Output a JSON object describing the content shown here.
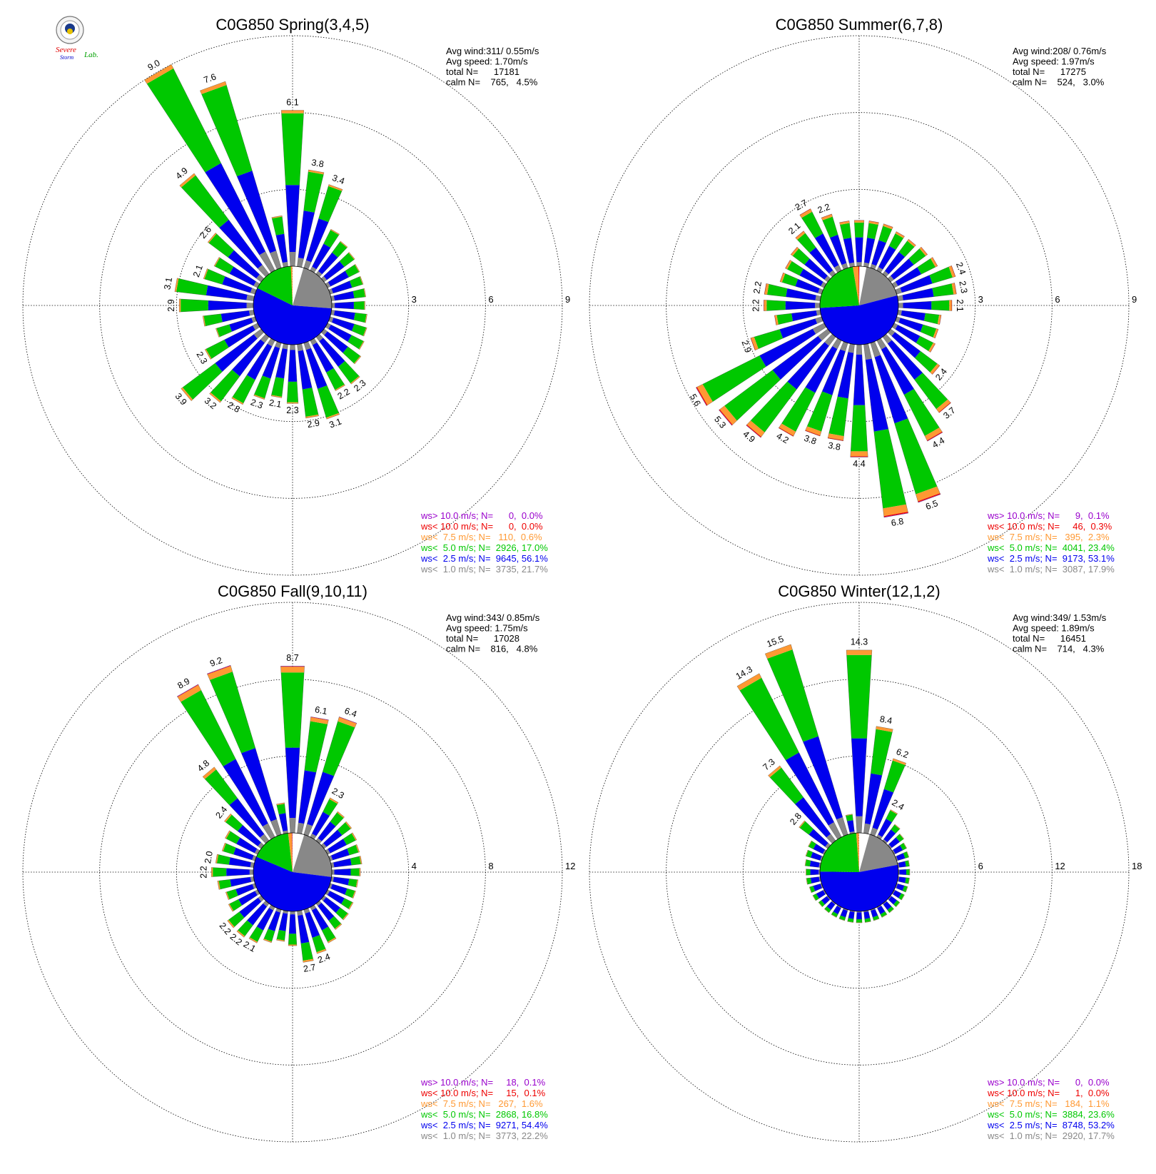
{
  "logo": {
    "top_text": "",
    "line1": "Severe",
    "line2": "Storm",
    "line3": "Lab."
  },
  "colors": {
    "calm": "#ffffff",
    "lt1": "#888888",
    "lt2_5": "#0000ee",
    "lt5": "#00c800",
    "lt7_5": "#ff9933",
    "lt10": "#ee0000",
    "gt10": "#9900cc"
  },
  "chart_data": [
    {
      "type": "windrose",
      "title": "C0G850 Spring(3,4,5)",
      "ring_labels": [
        "3",
        "6",
        "9"
      ],
      "ring_values": [
        3,
        6,
        9
      ],
      "stats": [
        "Avg wind:311/ 0.55m/s",
        "Avg speed: 1.70m/s",
        "total N=      17181",
        "calm N=    765,   4.5%"
      ],
      "speed_share": [
        0.045,
        0.217,
        0.561,
        0.17,
        0.006,
        0.0,
        0.0
      ],
      "directions": [
        {
          "dir": 0,
          "v": 6.1,
          "label": "6.1"
        },
        {
          "dir": 10,
          "v": 3.8,
          "label": "3.8"
        },
        {
          "dir": 20,
          "v": 3.4,
          "label": "3.4"
        },
        {
          "dir": 30,
          "v": 1.8
        },
        {
          "dir": 40,
          "v": 1.6
        },
        {
          "dir": 50,
          "v": 1.5
        },
        {
          "dir": 60,
          "v": 1.4
        },
        {
          "dir": 70,
          "v": 1.35
        },
        {
          "dir": 80,
          "v": 1.35
        },
        {
          "dir": 90,
          "v": 1.3
        },
        {
          "dir": 100,
          "v": 1.4
        },
        {
          "dir": 110,
          "v": 1.5
        },
        {
          "dir": 120,
          "v": 1.6
        },
        {
          "dir": 130,
          "v": 1.8
        },
        {
          "dir": 140,
          "v": 2.3,
          "label": "2.3"
        },
        {
          "dir": 150,
          "v": 2.2,
          "label": "2.2"
        },
        {
          "dir": 160,
          "v": 3.1,
          "label": "3.1"
        },
        {
          "dir": 170,
          "v": 2.9,
          "label": "2.9"
        },
        {
          "dir": 180,
          "v": 2.3,
          "label": "2.3"
        },
        {
          "dir": 190,
          "v": 2.1,
          "label": "2.1"
        },
        {
          "dir": 200,
          "v": 2.3,
          "label": "2.3"
        },
        {
          "dir": 210,
          "v": 2.8,
          "label": "2.8"
        },
        {
          "dir": 220,
          "v": 3.2,
          "label": "3.2"
        },
        {
          "dir": 230,
          "v": 3.9,
          "label": "3.9"
        },
        {
          "dir": 240,
          "v": 2.3,
          "label": "2.3"
        },
        {
          "dir": 250,
          "v": 1.6
        },
        {
          "dir": 260,
          "v": 2.0
        },
        {
          "dir": 270,
          "v": 2.9,
          "label": "2.9"
        },
        {
          "dir": 280,
          "v": 3.1,
          "label": "3.1"
        },
        {
          "dir": 290,
          "v": 2.1,
          "label": "2.1"
        },
        {
          "dir": 300,
          "v": 1.9
        },
        {
          "dir": 310,
          "v": 2.6,
          "label": "2.6"
        },
        {
          "dir": 320,
          "v": 4.9,
          "label": "4.9"
        },
        {
          "dir": 330,
          "v": 9.0,
          "label": "9.0"
        },
        {
          "dir": 340,
          "v": 7.6,
          "label": "7.6"
        },
        {
          "dir": 350,
          "v": 2.0
        }
      ],
      "legend": [
        {
          "text": "ws> 10.0 m/s; N=      0,  0.0%",
          "key": "gt10"
        },
        {
          "text": "ws< 10.0 m/s; N=      0,  0.0%",
          "key": "lt10"
        },
        {
          "text": "ws<  7.5 m/s; N=   110,  0.6%",
          "key": "lt7_5"
        },
        {
          "text": "ws<  5.0 m/s; N=  2926, 17.0%",
          "key": "lt5"
        },
        {
          "text": "ws<  2.5 m/s; N=  9645, 56.1%",
          "key": "lt2_5"
        },
        {
          "text": "ws<  1.0 m/s; N=  3735, 21.7%",
          "key": "lt1"
        }
      ]
    },
    {
      "type": "windrose",
      "title": "C0G850 Summer(6,7,8)",
      "ring_labels": [
        "3",
        "6",
        "9"
      ],
      "ring_values": [
        3,
        6,
        9
      ],
      "stats": [
        "Avg wind:208/ 0.76m/s",
        "Avg speed: 1.97m/s",
        "total N=      17275",
        "calm N=    524,   3.0%"
      ],
      "speed_share": [
        0.03,
        0.179,
        0.531,
        0.234,
        0.023,
        0.003,
        0.001
      ],
      "directions": [
        {
          "dir": 0,
          "v": 1.8
        },
        {
          "dir": 10,
          "v": 1.8
        },
        {
          "dir": 20,
          "v": 1.8
        },
        {
          "dir": 30,
          "v": 1.7
        },
        {
          "dir": 40,
          "v": 1.7
        },
        {
          "dir": 50,
          "v": 1.8
        },
        {
          "dir": 60,
          "v": 1.9
        },
        {
          "dir": 70,
          "v": 2.4,
          "label": "2.4"
        },
        {
          "dir": 80,
          "v": 2.3,
          "label": "2.3"
        },
        {
          "dir": 90,
          "v": 2.1,
          "label": "2.1"
        },
        {
          "dir": 100,
          "v": 1.7
        },
        {
          "dir": 110,
          "v": 1.7
        },
        {
          "dir": 120,
          "v": 1.8
        },
        {
          "dir": 130,
          "v": 2.4,
          "label": "2.4"
        },
        {
          "dir": 140,
          "v": 3.7,
          "label": "3.7"
        },
        {
          "dir": 150,
          "v": 4.4,
          "label": "4.4"
        },
        {
          "dir": 160,
          "v": 6.5,
          "label": "6.5"
        },
        {
          "dir": 170,
          "v": 6.8,
          "label": "6.8"
        },
        {
          "dir": 180,
          "v": 4.4,
          "label": "4.4"
        },
        {
          "dir": 190,
          "v": 3.8,
          "label": "3.8"
        },
        {
          "dir": 200,
          "v": 3.8,
          "label": "3.8"
        },
        {
          "dir": 210,
          "v": 4.2,
          "label": "4.2"
        },
        {
          "dir": 220,
          "v": 4.9,
          "label": "4.9"
        },
        {
          "dir": 230,
          "v": 5.3,
          "label": "5.3"
        },
        {
          "dir": 240,
          "v": 5.6,
          "label": "5.6"
        },
        {
          "dir": 250,
          "v": 2.9,
          "label": "2.9"
        },
        {
          "dir": 260,
          "v": 1.8
        },
        {
          "dir": 270,
          "v": 2.2,
          "label": "2.2"
        },
        {
          "dir": 280,
          "v": 2.2,
          "label": "2.2"
        },
        {
          "dir": 290,
          "v": 1.7
        },
        {
          "dir": 300,
          "v": 1.7
        },
        {
          "dir": 310,
          "v": 1.8
        },
        {
          "dir": 320,
          "v": 2.1,
          "label": "2.1"
        },
        {
          "dir": 330,
          "v": 2.7,
          "label": "2.7"
        },
        {
          "dir": 340,
          "v": 2.2,
          "label": "2.2"
        },
        {
          "dir": 350,
          "v": 1.8
        }
      ],
      "legend": [
        {
          "text": "ws> 10.0 m/s; N=      9,  0.1%",
          "key": "gt10"
        },
        {
          "text": "ws< 10.0 m/s; N=     46,  0.3%",
          "key": "lt10"
        },
        {
          "text": "ws<  7.5 m/s; N=   395,  2.3%",
          "key": "lt7_5"
        },
        {
          "text": "ws<  5.0 m/s; N=  4041, 23.4%",
          "key": "lt5"
        },
        {
          "text": "ws<  2.5 m/s; N=  9173, 53.1%",
          "key": "lt2_5"
        },
        {
          "text": "ws<  1.0 m/s; N=  3087, 17.9%",
          "key": "lt1"
        }
      ]
    },
    {
      "type": "windrose",
      "title": "C0G850 Fall(9,10,11)",
      "ring_labels": [
        "4",
        "8",
        "12"
      ],
      "ring_values": [
        4,
        8,
        12
      ],
      "stats": [
        "Avg wind:343/ 0.85m/s",
        "Avg speed: 1.75m/s",
        "total N=      17028",
        "calm N=    816,   4.8%"
      ],
      "speed_share": [
        0.048,
        0.222,
        0.544,
        0.168,
        0.016,
        0.001,
        0.001
      ],
      "directions": [
        {
          "dir": 0,
          "v": 8.7,
          "label": "8.7"
        },
        {
          "dir": 10,
          "v": 6.1,
          "label": "6.1"
        },
        {
          "dir": 20,
          "v": 6.4,
          "label": "6.4"
        },
        {
          "dir": 30,
          "v": 2.3,
          "label": "2.3"
        },
        {
          "dir": 40,
          "v": 1.9
        },
        {
          "dir": 50,
          "v": 1.8
        },
        {
          "dir": 60,
          "v": 1.7
        },
        {
          "dir": 70,
          "v": 1.6
        },
        {
          "dir": 80,
          "v": 1.6
        },
        {
          "dir": 90,
          "v": 1.5
        },
        {
          "dir": 100,
          "v": 1.4
        },
        {
          "dir": 110,
          "v": 1.4
        },
        {
          "dir": 120,
          "v": 1.5
        },
        {
          "dir": 130,
          "v": 1.6
        },
        {
          "dir": 140,
          "v": 1.7
        },
        {
          "dir": 150,
          "v": 2.1
        },
        {
          "dir": 160,
          "v": 2.4,
          "label": "2.4"
        },
        {
          "dir": 170,
          "v": 2.7,
          "label": "2.7"
        },
        {
          "dir": 180,
          "v": 1.8
        },
        {
          "dir": 190,
          "v": 1.6
        },
        {
          "dir": 200,
          "v": 1.8
        },
        {
          "dir": 210,
          "v": 2.1,
          "label": "2.1"
        },
        {
          "dir": 220,
          "v": 2.2,
          "label": "2.2"
        },
        {
          "dir": 230,
          "v": 2.2,
          "label": "2.2"
        },
        {
          "dir": 240,
          "v": 1.7
        },
        {
          "dir": 250,
          "v": 1.6
        },
        {
          "dir": 260,
          "v": 1.9
        },
        {
          "dir": 270,
          "v": 2.2,
          "label": "2.2"
        },
        {
          "dir": 280,
          "v": 2.0,
          "label": "2.0"
        },
        {
          "dir": 290,
          "v": 1.8
        },
        {
          "dir": 300,
          "v": 1.9
        },
        {
          "dir": 310,
          "v": 2.4,
          "label": "2.4"
        },
        {
          "dir": 320,
          "v": 4.8,
          "label": "4.8"
        },
        {
          "dir": 330,
          "v": 8.9,
          "label": "8.9"
        },
        {
          "dir": 340,
          "v": 9.2,
          "label": "9.2"
        },
        {
          "dir": 350,
          "v": 1.6
        }
      ],
      "legend": [
        {
          "text": "ws> 10.0 m/s; N=     18,  0.1%",
          "key": "gt10"
        },
        {
          "text": "ws< 10.0 m/s; N=     15,  0.1%",
          "key": "lt10"
        },
        {
          "text": "ws<  7.5 m/s; N=   267,  1.6%",
          "key": "lt7_5"
        },
        {
          "text": "ws<  5.0 m/s; N=  2868, 16.8%",
          "key": "lt5"
        },
        {
          "text": "ws<  2.5 m/s; N=  9271, 54.4%",
          "key": "lt2_5"
        },
        {
          "text": "ws<  1.0 m/s; N=  3773, 22.2%",
          "key": "lt1"
        }
      ]
    },
    {
      "type": "windrose",
      "title": "C0G850 Winter(12,1,2)",
      "ring_labels": [
        "6",
        "12",
        "18"
      ],
      "ring_values": [
        6,
        12,
        18
      ],
      "stats": [
        "Avg wind:349/ 1.53m/s",
        "Avg speed: 1.89m/s",
        "total N=      16451",
        "calm N=    714,   4.3%"
      ],
      "speed_share": [
        0.043,
        0.177,
        0.532,
        0.236,
        0.011,
        0.0,
        0.0
      ],
      "directions": [
        {
          "dir": 0,
          "v": 14.3,
          "label": "14.3"
        },
        {
          "dir": 10,
          "v": 8.4,
          "label": "8.4"
        },
        {
          "dir": 20,
          "v": 6.2,
          "label": "6.2"
        },
        {
          "dir": 30,
          "v": 2.4,
          "label": "2.4"
        },
        {
          "dir": 40,
          "v": 1.6
        },
        {
          "dir": 50,
          "v": 1.3
        },
        {
          "dir": 60,
          "v": 1.1
        },
        {
          "dir": 70,
          "v": 1.0
        },
        {
          "dir": 80,
          "v": 0.9
        },
        {
          "dir": 90,
          "v": 0.9
        },
        {
          "dir": 100,
          "v": 0.9
        },
        {
          "dir": 110,
          "v": 0.9
        },
        {
          "dir": 120,
          "v": 0.9
        },
        {
          "dir": 130,
          "v": 0.9
        },
        {
          "dir": 140,
          "v": 0.9
        },
        {
          "dir": 150,
          "v": 0.9
        },
        {
          "dir": 160,
          "v": 0.9
        },
        {
          "dir": 170,
          "v": 0.9
        },
        {
          "dir": 180,
          "v": 0.9
        },
        {
          "dir": 190,
          "v": 0.9
        },
        {
          "dir": 200,
          "v": 0.9
        },
        {
          "dir": 210,
          "v": 0.9
        },
        {
          "dir": 220,
          "v": 0.9
        },
        {
          "dir": 230,
          "v": 0.9
        },
        {
          "dir": 240,
          "v": 1.0
        },
        {
          "dir": 250,
          "v": 1.0
        },
        {
          "dir": 260,
          "v": 1.1
        },
        {
          "dir": 270,
          "v": 1.1
        },
        {
          "dir": 280,
          "v": 1.2
        },
        {
          "dir": 290,
          "v": 1.3
        },
        {
          "dir": 300,
          "v": 1.4
        },
        {
          "dir": 310,
          "v": 2.8,
          "label": "2.8"
        },
        {
          "dir": 320,
          "v": 7.3,
          "label": "7.3"
        },
        {
          "dir": 330,
          "v": 14.3,
          "label": "14.3"
        },
        {
          "dir": 340,
          "v": 15.5,
          "label": "15.5"
        },
        {
          "dir": 350,
          "v": 1.5
        }
      ],
      "legend": [
        {
          "text": "ws> 10.0 m/s; N=      0,  0.0%",
          "key": "gt10"
        },
        {
          "text": "ws< 10.0 m/s; N=      1,  0.0%",
          "key": "lt10"
        },
        {
          "text": "ws<  7.5 m/s; N=   184,  1.1%",
          "key": "lt7_5"
        },
        {
          "text": "ws<  5.0 m/s; N=  3884, 23.6%",
          "key": "lt5"
        },
        {
          "text": "ws<  2.5 m/s; N=  8748, 53.2%",
          "key": "lt2_5"
        },
        {
          "text": "ws<  1.0 m/s; N=  2920, 17.7%",
          "key": "lt1"
        }
      ]
    }
  ]
}
